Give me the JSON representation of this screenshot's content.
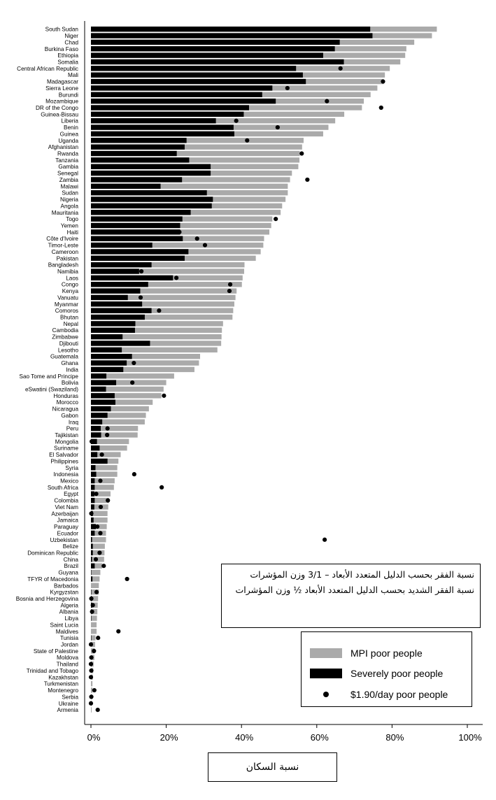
{
  "chart_data": {
    "type": "bar",
    "orientation": "horizontal",
    "stacked_overlay": true,
    "xlim": [
      0,
      100
    ],
    "x_ticks": [
      "0%",
      "20%",
      "40%",
      "60%",
      "80%",
      "100%"
    ],
    "xlabel": "نسبة السكان",
    "annotation_lines": [
      "نسبة الفقر بحسب الدليل المتعدد الأبعاد – 3/1 وزن المؤشرات",
      "نسبة الفقر الشديد بحسب الدليل المتعدد الأبعاد ½ وزن المؤشرات"
    ],
    "legend_position": "bottom-right",
    "series": [
      {
        "name": "MPI poor people",
        "color": "#aaaaaa"
      },
      {
        "name": "Severely poor people",
        "color": "#000000"
      },
      {
        "name": "$1.90/day poor people",
        "color": "#000000",
        "marker": "dot"
      }
    ],
    "categories": [
      "South Sudan",
      "Niger",
      "Chad",
      "Burkina Faso",
      "Ethiopia",
      "Somalia",
      "Central African Republic",
      "Mali",
      "Madagascar",
      "Sierra Leone",
      "Burundi",
      "Mozambique",
      "DR of the Congo",
      "Guinea-Bissau",
      "Liberia",
      "Benin",
      "Guinea",
      "Uganda",
      "Afghanistan",
      "Rwanda",
      "Tanzania",
      "Gambia",
      "Senegal",
      "Zambia",
      "Malawi",
      "Sudan",
      "Nigeria",
      "Angola",
      "Mauritania",
      "Togo",
      "Yemen",
      "Haiti",
      "Côte d'Ivoire",
      "Timor-Leste",
      "Cameroon",
      "Pakistan",
      "Bangladesh",
      "Namibia",
      "Laos",
      "Congo",
      "Kenya",
      "Vanuatu",
      "Myanmar",
      "Comoros",
      "Bhutan",
      "Nepal",
      "Cambodia",
      "Zimbabwe",
      "Djibouti",
      "Lesotho",
      "Guatemala",
      "Ghana",
      "India",
      "Sao Tome and Principe",
      "Bolivia",
      "eSwatini (Swaziland)",
      "Honduras",
      "Morocco",
      "Nicaragua",
      "Gabon",
      "Iraq",
      "Peru",
      "Tajikistan",
      "Mongolia",
      "Suriname",
      "El Salvador",
      "Philippines",
      "Syria",
      "Indonesia",
      "Mexico",
      "South Africa",
      "Egypt",
      "Colombia",
      "Viet Nam",
      "Azerbaijan",
      "Jamaica",
      "Paraguay",
      "Ecuador",
      "Uzbekistan",
      "Belize",
      "Dominican Republic",
      "China",
      "Brazil",
      "Guyana",
      "TFYR of Macedonia",
      "Barbados",
      "Kyrgyzstan",
      "Bosnia and Herzegovina",
      "Algeria",
      "Albania",
      "Libya",
      "Saint Lucia",
      "Maldives",
      "Tunisia",
      "Jordan",
      "State of Palestine",
      "Moldova",
      "Thailand",
      "Trinidad and Tobago",
      "Kazakhstan",
      "Turkmenistan",
      "Montenegro",
      "Serbia",
      "Ukraine",
      "Armenia"
    ],
    "mpi": [
      91.9,
      90.6,
      85.9,
      83.8,
      83.5,
      82.2,
      79.4,
      78.1,
      77.8,
      76.1,
      74.3,
      72.5,
      72.0,
      67.3,
      64.9,
      63.1,
      61.7,
      56.5,
      56.1,
      55.5,
      55.4,
      55.1,
      53.4,
      52.9,
      52.3,
      52.3,
      51.7,
      50.8,
      50.4,
      48.2,
      47.9,
      47.4,
      46.0,
      45.8,
      45.1,
      43.8,
      40.8,
      40.7,
      40.3,
      40.1,
      38.7,
      38.4,
      38.1,
      37.8,
      37.6,
      35.1,
      34.8,
      34.7,
      34.6,
      33.6,
      29.0,
      28.7,
      27.5,
      22.1,
      20.0,
      19.3,
      18.7,
      16.4,
      15.4,
      14.6,
      14.3,
      12.5,
      12.4,
      10.1,
      9.6,
      7.9,
      7.3,
      7.0,
      7.0,
      6.3,
      6.1,
      5.2,
      4.8,
      4.6,
      4.4,
      4.4,
      4.2,
      4.0,
      4.0,
      3.7,
      3.6,
      3.5,
      3.0,
      2.5,
      2.3,
      2.1,
      2.1,
      1.9,
      1.8,
      1.7,
      1.6,
      1.5,
      1.5,
      1.2,
      1.1,
      1.0,
      0.9,
      0.7,
      0.6,
      0.5,
      0.4,
      0.4,
      0.3,
      0.2,
      0.2
    ],
    "severe": [
      74.2,
      74.8,
      66.1,
      64.8,
      61.7,
      67.2,
      54.5,
      56.3,
      57.1,
      48.2,
      45.5,
      49.1,
      42.0,
      40.6,
      33.2,
      37.9,
      38.1,
      25.4,
      24.9,
      22.8,
      26.1,
      31.8,
      31.8,
      24.2,
      18.5,
      30.8,
      32.4,
      32.1,
      26.5,
      24.3,
      23.7,
      23.7,
      24.4,
      16.3,
      25.9,
      24.9,
      16.1,
      12.8,
      21.8,
      15.2,
      13.1,
      9.8,
      13.6,
      16.1,
      14.3,
      11.8,
      11.7,
      8.4,
      15.7,
      8.2,
      10.9,
      9.5,
      8.6,
      4.1,
      6.7,
      4.0,
      6.3,
      6.5,
      5.3,
      4.4,
      3.0,
      2.6,
      2.7,
      1.6,
      2.3,
      1.7,
      4.4,
      1.2,
      1.4,
      1.0,
      1.0,
      0.9,
      1.0,
      0.9,
      0.5,
      0.7,
      1.3,
      1.0,
      0.3,
      0.5,
      0.5,
      0.3,
      1.0,
      0.1,
      0.4,
      0.0,
      0.1,
      0.2,
      0.3,
      0.1,
      0.1,
      0.0,
      0.0,
      0.1,
      0.0,
      0.0,
      0.0,
      0.1,
      0.0,
      0.0,
      0.0,
      0.0,
      0.0,
      0.0,
      0.0
    ],
    "dollar": [
      null,
      null,
      null,
      null,
      null,
      null,
      66.3,
      null,
      77.6,
      52.2,
      null,
      62.7,
      77.1,
      null,
      38.6,
      49.6,
      null,
      41.5,
      null,
      56.0,
      null,
      null,
      null,
      57.5,
      null,
      null,
      null,
      null,
      null,
      49.1,
      null,
      23.5,
      28.2,
      30.3,
      null,
      null,
      null,
      13.4,
      22.7,
      37.0,
      36.8,
      13.2,
      null,
      18.1,
      null,
      null,
      null,
      null,
      null,
      null,
      null,
      11.4,
      null,
      null,
      11.0,
      null,
      19.4,
      null,
      null,
      null,
      null,
      4.4,
      4.3,
      0.2,
      null,
      2.9,
      null,
      null,
      11.5,
      2.5,
      18.8,
      1.4,
      4.5,
      2.6,
      0.1,
      null,
      1.7,
      2.5,
      62.1,
      null,
      2.3,
      1.3,
      3.4,
      null,
      9.6,
      null,
      1.5,
      0.1,
      0.5,
      0.3,
      null,
      null,
      7.3,
      1.9,
      0.0,
      0.8,
      0.1,
      0.0,
      0.1,
      0.0,
      null,
      0.9,
      0.1,
      0.0,
      1.8
    ]
  }
}
